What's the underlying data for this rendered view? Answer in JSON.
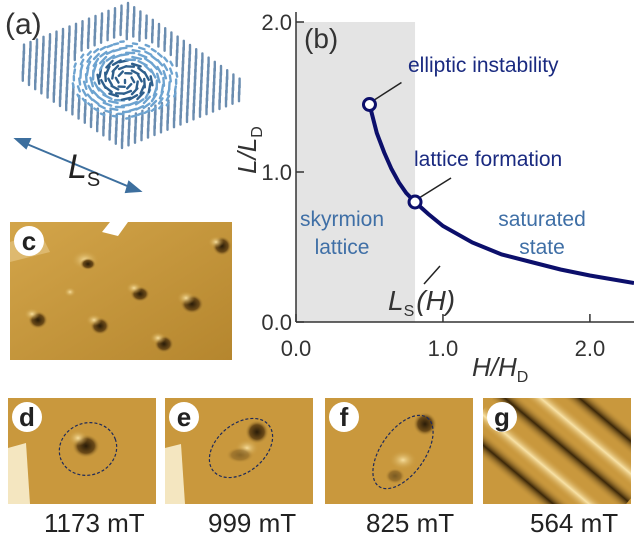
{
  "panel_labels": {
    "a": "(a)",
    "b": "(b)",
    "c": "c",
    "d": "d",
    "e": "e",
    "f": "f",
    "g": "g"
  },
  "panel_a": {
    "length_symbol": "L",
    "length_subscript": "S",
    "arrow_color": "#3d6f9e"
  },
  "chart_data": {
    "type": "line",
    "xlabel": "H/H",
    "xlabel_subscript": "D",
    "ylabel": "L/L",
    "ylabel_subscript": "D",
    "xlim": [
      0.0,
      2.3
    ],
    "ylim": [
      0.0,
      2.0
    ],
    "x_ticks": [
      "0.0",
      "1.0",
      "2.0"
    ],
    "y_ticks": [
      "0.0",
      "1.0",
      "2.0"
    ],
    "shaded_region": {
      "x_from": 0.0,
      "x_to": 0.81,
      "color": "#e4e4e4"
    },
    "series": [
      {
        "color": "#0c0f6b",
        "x": [
          0.5,
          0.55,
          0.6,
          0.65,
          0.7,
          0.75,
          0.81,
          0.9,
          1.0,
          1.2,
          1.4,
          1.6,
          1.8,
          2.0,
          2.3
        ],
        "y": [
          1.45,
          1.26,
          1.13,
          1.02,
          0.93,
          0.86,
          0.8,
          0.72,
          0.64,
          0.53,
          0.45,
          0.4,
          0.35,
          0.31,
          0.26
        ]
      }
    ],
    "markers": [
      {
        "x": 0.5,
        "y": 1.45,
        "label": "elliptic instability"
      },
      {
        "x": 0.81,
        "y": 0.8,
        "label": "lattice formation"
      }
    ],
    "region_labels": {
      "left": [
        "skyrmion",
        "lattice"
      ],
      "right": [
        "saturated",
        "state"
      ]
    },
    "curve_label": {
      "main": "L",
      "subscript": "S",
      "suffix": "(H)"
    },
    "colors": {
      "curve": "#0c0f6b",
      "annotation": "#1a2a80",
      "region_text": "#3f6fa6"
    }
  },
  "fields": [
    "1173 mT",
    "999 mT",
    "825 mT",
    "564 mT"
  ]
}
